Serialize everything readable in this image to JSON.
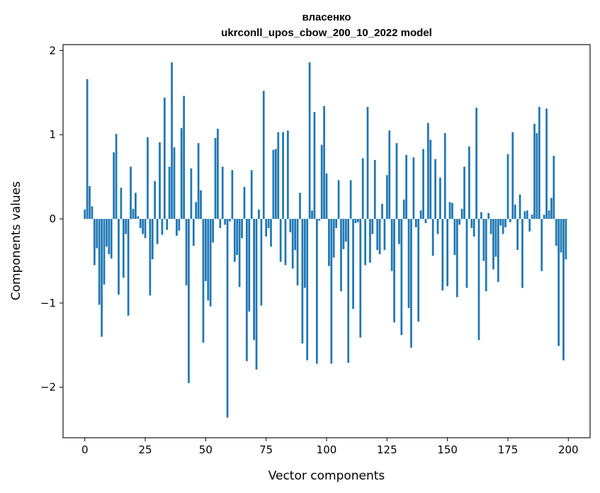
{
  "chart_data": {
    "type": "bar",
    "title": "власенко",
    "subtitle": "ukrconll_upos_cbow_200_10_2022 model",
    "xlabel": "Vector components",
    "ylabel": "Components values",
    "xlim": [
      -9,
      209
    ],
    "ylim": [
      -2.6,
      2.07
    ],
    "xticks": [
      0,
      25,
      50,
      75,
      100,
      125,
      150,
      175,
      200
    ],
    "yticks": [
      -2,
      -1,
      0,
      1,
      2
    ],
    "ytick_labels": [
      "−2",
      "−1",
      "0",
      "1",
      "2"
    ],
    "grid": false,
    "legend": "none",
    "color": "#1f77b4",
    "x": [
      0,
      1,
      2,
      3,
      4,
      5,
      6,
      7,
      8,
      9,
      10,
      11,
      12,
      13,
      14,
      15,
      16,
      17,
      18,
      19,
      20,
      21,
      22,
      23,
      24,
      25,
      26,
      27,
      28,
      29,
      30,
      31,
      32,
      33,
      34,
      35,
      36,
      37,
      38,
      39,
      40,
      41,
      42,
      43,
      44,
      45,
      46,
      47,
      48,
      49,
      50,
      51,
      52,
      53,
      54,
      55,
      56,
      57,
      58,
      59,
      60,
      61,
      62,
      63,
      64,
      65,
      66,
      67,
      68,
      69,
      70,
      71,
      72,
      73,
      74,
      75,
      76,
      77,
      78,
      79,
      80,
      81,
      82,
      83,
      84,
      85,
      86,
      87,
      88,
      89,
      90,
      91,
      92,
      93,
      94,
      95,
      96,
      97,
      98,
      99,
      100,
      101,
      102,
      103,
      104,
      105,
      106,
      107,
      108,
      109,
      110,
      111,
      112,
      113,
      114,
      115,
      116,
      117,
      118,
      119,
      120,
      121,
      122,
      123,
      124,
      125,
      126,
      127,
      128,
      129,
      130,
      131,
      132,
      133,
      134,
      135,
      136,
      137,
      138,
      139,
      140,
      141,
      142,
      143,
      144,
      145,
      146,
      147,
      148,
      149,
      150,
      151,
      152,
      153,
      154,
      155,
      156,
      157,
      158,
      159,
      160,
      161,
      162,
      163,
      164,
      165,
      166,
      167,
      168,
      169,
      170,
      171,
      172,
      173,
      174,
      175,
      176,
      177,
      178,
      179,
      180,
      181,
      182,
      183,
      184,
      185,
      186,
      187,
      188,
      189,
      190,
      191,
      192,
      193,
      194,
      195,
      196,
      197,
      198,
      199
    ],
    "values": [
      0.11,
      1.66,
      0.39,
      0.15,
      -0.55,
      -0.35,
      -1.02,
      -1.4,
      -0.78,
      -0.33,
      -0.42,
      -0.47,
      0.79,
      1.01,
      -0.9,
      0.37,
      -0.7,
      -0.18,
      -1.15,
      0.62,
      0.12,
      0.31,
      0.03,
      -0.11,
      -0.18,
      -0.23,
      0.97,
      -0.91,
      -0.48,
      0.45,
      -0.3,
      0.91,
      -0.19,
      1.44,
      -0.13,
      0.62,
      1.86,
      0.85,
      -0.2,
      -0.14,
      1.08,
      1.46,
      -0.79,
      -1.95,
      0.6,
      -0.32,
      0.2,
      0.9,
      0.34,
      -1.47,
      -0.74,
      -0.97,
      -1.04,
      -0.28,
      0.96,
      1.07,
      -0.11,
      0.62,
      -0.07,
      -2.36,
      -0.03,
      0.58,
      -0.51,
      -0.43,
      -0.81,
      -0.23,
      0.38,
      -1.69,
      -1.1,
      0.58,
      -1.44,
      -1.79,
      0.11,
      -1.03,
      1.52,
      -0.21,
      -0.11,
      -0.33,
      0.82,
      0.83,
      1.03,
      -0.51,
      1.03,
      -0.55,
      1.05,
      -0.16,
      -0.59,
      -0.37,
      -0.79,
      0.31,
      -1.48,
      -0.82,
      -1.68,
      1.86,
      0.1,
      1.27,
      -1.72,
      -0.02,
      0.88,
      1.34,
      0.54,
      -0.56,
      -1.72,
      -0.46,
      -0.11,
      0.46,
      -0.86,
      -0.36,
      -0.27,
      -1.71,
      0.46,
      -1.07,
      -0.05,
      -0.04,
      -1.41,
      0.72,
      -0.55,
      1.33,
      -0.52,
      -0.18,
      0.7,
      -0.37,
      -0.42,
      0.18,
      -0.37,
      0.52,
      1.05,
      -0.62,
      -1.23,
      0.9,
      -0.3,
      -1.38,
      0.23,
      0.76,
      -1.06,
      -1.53,
      0.73,
      -0.1,
      -1.22,
      0.1,
      0.83,
      -0.05,
      1.14,
      0.94,
      -0.44,
      0.71,
      -0.18,
      0.49,
      -0.85,
      1.02,
      -0.8,
      0.2,
      0.19,
      -0.43,
      -0.93,
      -0.07,
      0.12,
      0.62,
      -0.82,
      0.86,
      -0.11,
      -0.21,
      1.32,
      -1.44,
      0.08,
      -0.5,
      -0.86,
      0.07,
      -0.18,
      -0.6,
      -0.45,
      -0.75,
      -0.08,
      -0.18,
      -0.1,
      0.77,
      -0.04,
      1.03,
      0.17,
      -0.37,
      0.29,
      -0.82,
      0.09,
      0.1,
      -0.15,
      0.05,
      1.13,
      1.02,
      1.33,
      -0.62,
      0.05,
      1.31,
      0.1,
      0.25,
      0.75,
      -0.32,
      -1.51,
      -0.4,
      -1.68,
      -0.48
    ]
  }
}
